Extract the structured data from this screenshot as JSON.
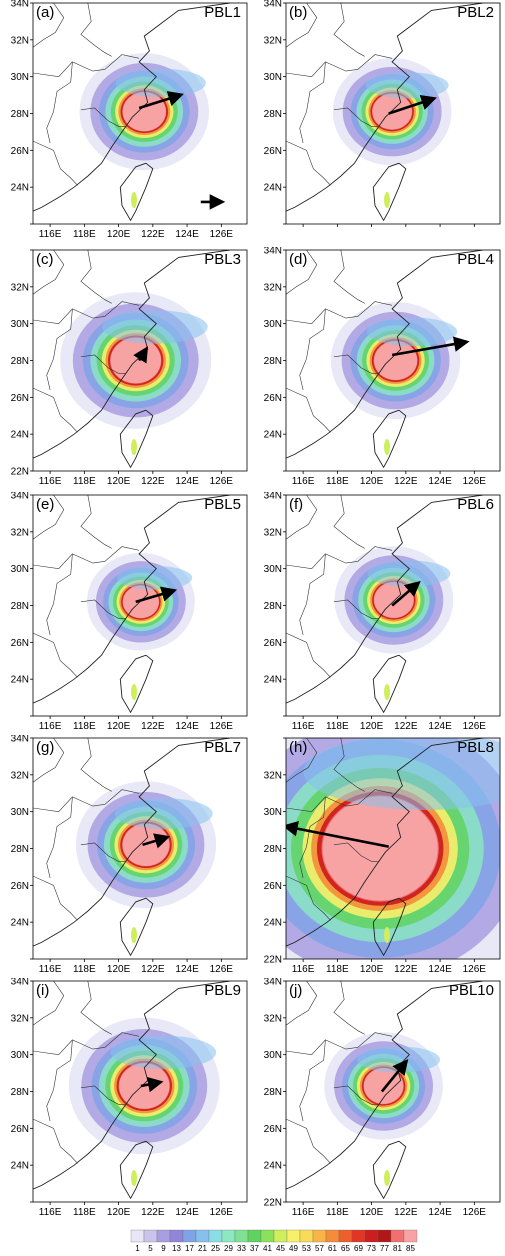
{
  "figure": {
    "lon_ticks": [
      "116E",
      "118E",
      "120E",
      "122E",
      "124E",
      "126E"
    ],
    "lat_ticks": [
      "22N",
      "24N",
      "26N",
      "28N",
      "30N",
      "32N",
      "34N"
    ],
    "lon_range": [
      115,
      127.5
    ],
    "lat_range": [
      22,
      34
    ],
    "colorbar": {
      "labels": [
        "1",
        "5",
        "9",
        "13",
        "17",
        "21",
        "25",
        "29",
        "33",
        "37",
        "41",
        "45",
        "49",
        "53",
        "57",
        "61",
        "65",
        "69",
        "73",
        "77",
        "81",
        "85"
      ],
      "colors": [
        "#e6e6f5",
        "#c9c4ec",
        "#a99ee0",
        "#8f86d9",
        "#7ea3e6",
        "#86c1ee",
        "#8adde6",
        "#8be8c1",
        "#7fe096",
        "#5fd35f",
        "#8be25a",
        "#cfee5c",
        "#f8f06a",
        "#fadb58",
        "#f8b446",
        "#f48c3a",
        "#ee5f2e",
        "#e33524",
        "#cc1e1e",
        "#b01818",
        "#f07070",
        "#f8a3a3"
      ]
    }
  },
  "chart_data": [
    {
      "type": "heatmap",
      "panel": "(a)",
      "title": "PBL1",
      "track_arrow": {
        "from": [
          121.2,
          28.3
        ],
        "to": [
          123.6,
          29.0
        ]
      },
      "extra_arrow": {
        "from": [
          124.8,
          23.2
        ],
        "to": [
          126.0,
          23.2
        ]
      },
      "core": {
        "lon": 121.5,
        "lat": 28.1,
        "radius_deg": 1.2
      },
      "shown_lat_ticks": [
        "24N",
        "26N",
        "28N",
        "30N",
        "32N",
        "34N"
      ],
      "shown_lon_ticks": [
        "116E",
        "118E",
        "120E",
        "122E",
        "124E",
        "126E"
      ]
    },
    {
      "type": "heatmap",
      "panel": "(b)",
      "title": "PBL2",
      "track_arrow": {
        "from": [
          121.0,
          28.0
        ],
        "to": [
          123.6,
          28.8
        ]
      },
      "core": {
        "lon": 121.2,
        "lat": 28.1,
        "radius_deg": 1.1
      },
      "shown_lat_ticks": [
        "24N",
        "26N",
        "28N",
        "30N",
        "32N",
        "34N"
      ],
      "shown_lon_ticks": []
    },
    {
      "type": "heatmap",
      "panel": "(c)",
      "title": "PBL3",
      "track_arrow": {
        "from": [
          121.2,
          28.0
        ],
        "to": [
          121.6,
          28.6
        ]
      },
      "core": {
        "lon": 121.0,
        "lat": 28.0,
        "radius_deg": 1.4
      },
      "shown_lat_ticks": [
        "22N",
        "24N",
        "26N",
        "28N",
        "30N",
        "32N"
      ],
      "shown_lon_ticks": [
        "116E",
        "118E",
        "120E",
        "122E",
        "124E",
        "126E"
      ]
    },
    {
      "type": "heatmap",
      "panel": "(d)",
      "title": "PBL4",
      "track_arrow": {
        "from": [
          121.2,
          28.3
        ],
        "to": [
          125.5,
          29.0
        ]
      },
      "core": {
        "lon": 121.4,
        "lat": 28.0,
        "radius_deg": 1.2
      },
      "shown_lat_ticks": [
        "24N",
        "26N",
        "28N",
        "30N",
        "32N",
        "34N"
      ],
      "shown_lon_ticks": [
        "116E",
        "118E",
        "120E",
        "122E",
        "124E",
        "126E"
      ]
    },
    {
      "type": "heatmap",
      "panel": "(e)",
      "title": "PBL5",
      "track_arrow": {
        "from": [
          121.0,
          28.2
        ],
        "to": [
          123.2,
          28.8
        ]
      },
      "core": {
        "lon": 121.3,
        "lat": 28.2,
        "radius_deg": 1.0
      },
      "shown_lat_ticks": [
        "24N",
        "26N",
        "28N",
        "30N",
        "32N",
        "34N"
      ],
      "shown_lon_ticks": [
        "116E",
        "118E",
        "120E",
        "122E",
        "124E",
        "126E"
      ]
    },
    {
      "type": "heatmap",
      "panel": "(f)",
      "title": "PBL6",
      "track_arrow": {
        "from": [
          121.2,
          28.0
        ],
        "to": [
          122.7,
          29.2
        ]
      },
      "core": {
        "lon": 121.3,
        "lat": 28.3,
        "radius_deg": 1.1
      },
      "shown_lat_ticks": [
        "24N",
        "26N",
        "28N",
        "30N",
        "32N",
        "34N"
      ],
      "shown_lon_ticks": [
        "116E",
        "118E",
        "120E",
        "122E",
        "124E",
        "126E"
      ]
    },
    {
      "type": "heatmap",
      "panel": "(g)",
      "title": "PBL7",
      "track_arrow": {
        "from": [
          121.4,
          28.2
        ],
        "to": [
          122.8,
          28.6
        ]
      },
      "core": {
        "lon": 121.6,
        "lat": 28.2,
        "radius_deg": 1.3
      },
      "shown_lat_ticks": [
        "24N",
        "26N",
        "28N",
        "30N",
        "32N",
        "34N"
      ],
      "shown_lon_ticks": [
        "116E",
        "118E",
        "120E",
        "122E",
        "124E",
        "126E"
      ]
    },
    {
      "type": "heatmap",
      "panel": "(h)",
      "title": "PBL8",
      "track_arrow": {
        "from": [
          121.0,
          28.1
        ],
        "to": [
          115.0,
          29.2
        ]
      },
      "core": {
        "lon": 120.5,
        "lat": 28.0,
        "radius_deg": 3.2
      },
      "shown_lat_ticks": [
        "22N",
        "24N",
        "26N",
        "28N",
        "30N",
        "32N"
      ],
      "shown_lon_ticks": [
        "116E",
        "118E",
        "120E",
        "122E",
        "124E",
        "126E"
      ]
    },
    {
      "type": "heatmap",
      "panel": "(i)",
      "title": "PBL9",
      "track_arrow": {
        "from": [
          121.3,
          28.3
        ],
        "to": [
          122.4,
          28.5
        ]
      },
      "core": {
        "lon": 121.5,
        "lat": 28.3,
        "radius_deg": 1.4
      },
      "shown_lat_ticks": [
        "24N",
        "26N",
        "28N",
        "30N",
        "32N",
        "34N"
      ],
      "shown_lon_ticks": [
        "116E",
        "118E",
        "120E",
        "122E",
        "124E",
        "126E"
      ]
    },
    {
      "type": "heatmap",
      "panel": "(j)",
      "title": "PBL10",
      "track_arrow": {
        "from": [
          120.6,
          28.0
        ],
        "to": [
          122.0,
          29.6
        ]
      },
      "core": {
        "lon": 120.7,
        "lat": 28.3,
        "radius_deg": 1.1
      },
      "shown_lat_ticks": [
        "22N",
        "24N",
        "26N",
        "28N",
        "30N",
        "32N",
        "34N"
      ],
      "shown_lon_ticks": [
        "116E",
        "118E",
        "120E",
        "122E",
        "124E",
        "126E"
      ]
    }
  ]
}
